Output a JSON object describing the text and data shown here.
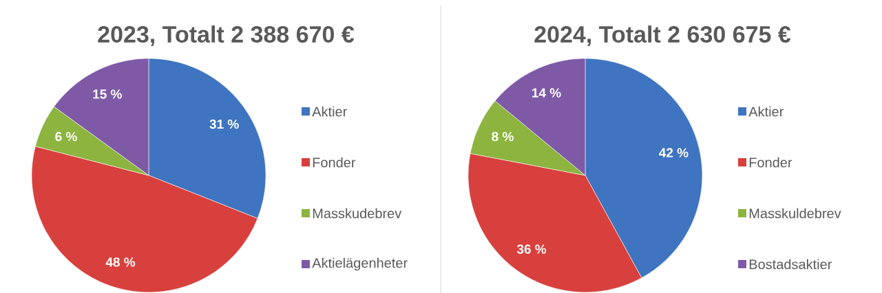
{
  "chart_data": [
    {
      "type": "pie",
      "title": "2023, Totalt 2 388 670 €",
      "categories": [
        "Aktier",
        "Fonder",
        "Masskudebrev",
        "Aktielägenheter"
      ],
      "values": [
        31,
        48,
        6,
        15
      ],
      "value_labels": [
        "31 %",
        "48 %",
        "6 %",
        "15 %"
      ],
      "colors": [
        "#3f74c0",
        "#d8403d",
        "#8cb43f",
        "#7e5aa6"
      ],
      "legend": "right"
    },
    {
      "type": "pie",
      "title": "2024, Totalt 2 630 675 €",
      "categories": [
        "Aktier",
        "Fonder",
        "Masskuldebrev",
        "Bostadsaktier"
      ],
      "values": [
        42,
        36,
        8,
        14
      ],
      "value_labels": [
        "42 %",
        "36 %",
        "8 %",
        "14 %"
      ],
      "colors": [
        "#3f74c0",
        "#d8403d",
        "#8cb43f",
        "#7e5aa6"
      ],
      "legend": "right"
    }
  ]
}
